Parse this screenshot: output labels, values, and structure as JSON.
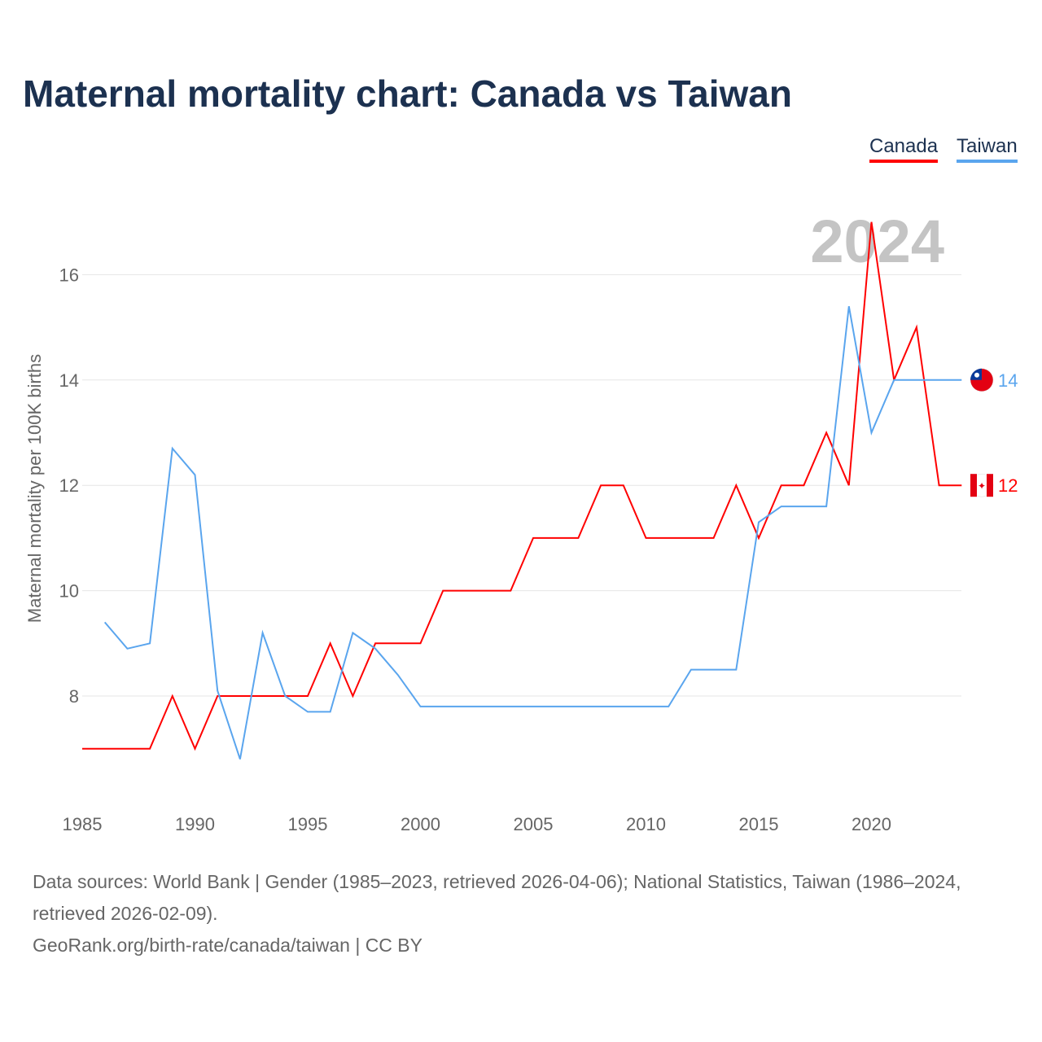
{
  "title": "Maternal mortality chart: Canada vs Taiwan",
  "footer": {
    "sources": "Data sources: World Bank | Gender (1985–2023, retrieved 2026-04-06); National Statistics, Taiwan (1986–2024, retrieved 2026-02-09).",
    "credit": "GeoRank.org/birth-rate/canada/taiwan | CC BY"
  },
  "chart_data": {
    "type": "line",
    "title": "Maternal mortality chart: Canada vs Taiwan",
    "ylabel": "Maternal mortality per 100K births",
    "xlabel": "",
    "watermark_year": "2024",
    "xlim": [
      1985,
      2024
    ],
    "ylim": [
      6,
      17.5
    ],
    "xticks": [
      1985,
      1990,
      1995,
      2000,
      2005,
      2010,
      2015,
      2020
    ],
    "yticks": [
      8,
      10,
      12,
      14,
      16
    ],
    "grid": true,
    "legend_position": "top-right",
    "series": [
      {
        "name": "Canada",
        "color": "#ff0000",
        "end_label": "12",
        "x": [
          1985,
          1986,
          1987,
          1988,
          1989,
          1990,
          1991,
          1992,
          1993,
          1994,
          1995,
          1996,
          1997,
          1998,
          1999,
          2000,
          2001,
          2002,
          2003,
          2004,
          2005,
          2006,
          2007,
          2008,
          2009,
          2010,
          2011,
          2012,
          2013,
          2014,
          2015,
          2016,
          2017,
          2018,
          2019,
          2020,
          2021,
          2022,
          2023,
          2024
        ],
        "y": [
          7,
          7,
          7,
          7,
          8,
          7,
          8,
          8,
          8,
          8,
          8,
          9,
          8,
          9,
          9,
          9,
          10,
          10,
          10,
          10,
          11,
          11,
          11,
          12,
          12,
          11,
          11,
          11,
          11,
          12,
          11,
          12,
          12,
          13,
          12,
          17,
          14,
          15,
          12,
          12
        ]
      },
      {
        "name": "Taiwan",
        "color": "#5aa5ee",
        "end_label": "14",
        "x": [
          1986,
          1987,
          1988,
          1989,
          1990,
          1991,
          1992,
          1993,
          1994,
          1995,
          1996,
          1997,
          1998,
          1999,
          2000,
          2001,
          2002,
          2003,
          2004,
          2005,
          2006,
          2007,
          2008,
          2009,
          2010,
          2011,
          2012,
          2013,
          2014,
          2015,
          2016,
          2017,
          2018,
          2019,
          2020,
          2021,
          2022,
          2023,
          2024
        ],
        "y": [
          9.4,
          8.9,
          9.0,
          12.7,
          12.2,
          8.1,
          6.8,
          9.2,
          8.0,
          7.7,
          7.7,
          9.2,
          8.9,
          8.4,
          7.8,
          7.8,
          7.8,
          7.8,
          7.8,
          7.8,
          7.8,
          7.8,
          7.8,
          7.8,
          7.8,
          7.8,
          8.5,
          8.5,
          8.5,
          11.3,
          11.6,
          11.6,
          11.6,
          15.4,
          13.0,
          14,
          14,
          14,
          14
        ]
      }
    ]
  }
}
